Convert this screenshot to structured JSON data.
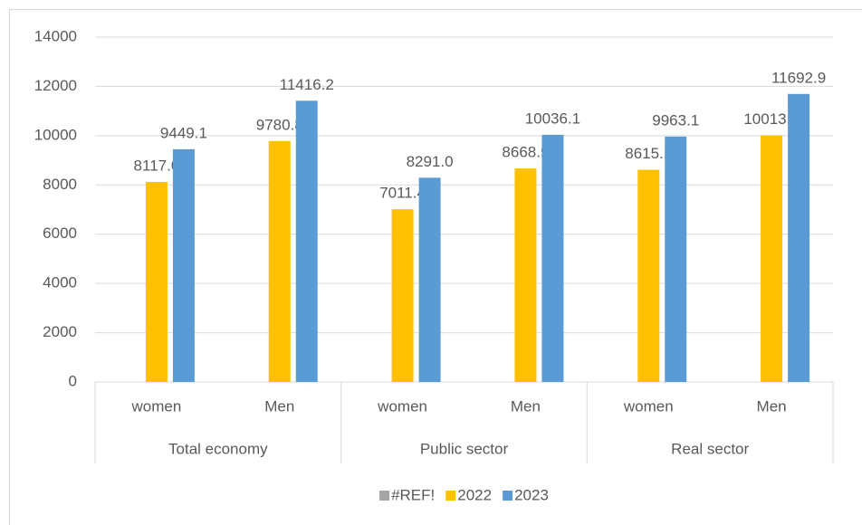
{
  "chart_data": {
    "type": "bar",
    "categories": [
      "women",
      "Men",
      "women",
      "Men",
      "women",
      "Men"
    ],
    "groups": [
      "Total economy",
      "Public sector",
      "Real sector"
    ],
    "series": [
      {
        "name": "#REF!",
        "color": "#a5a5a5",
        "values": [
          null,
          null,
          null,
          null,
          null,
          null
        ]
      },
      {
        "name": "2022",
        "color": "#ffc000",
        "values": [
          8117.0,
          9780.8,
          7011.4,
          8668.9,
          8615.1,
          10013.4
        ],
        "value_labels": [
          "8117.0",
          "9780.8",
          "7011.4",
          "8668.9",
          "8615.1",
          "10013.4"
        ]
      },
      {
        "name": "2023",
        "color": "#5b9bd5",
        "values": [
          9449.1,
          11416.2,
          8291.0,
          10036.1,
          9963.1,
          11692.9
        ],
        "value_labels": [
          "9449.1",
          "11416.2",
          "8291.0",
          "10036.1",
          "9963.1",
          "11692.9"
        ]
      }
    ],
    "ylim": [
      0,
      14000
    ],
    "yticks": [
      0,
      2000,
      4000,
      6000,
      8000,
      10000,
      12000,
      14000
    ],
    "grid": true,
    "legend": "bottom"
  }
}
